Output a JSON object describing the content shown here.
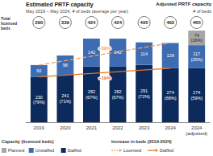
{
  "chart_data": {
    "type": "bar",
    "title": "Estimated PRTF capacity",
    "subtitle": "May 2019 – May 2024, # of beds (average per year)",
    "annotations": {
      "adjusted_title": "Adjusted PRTF capacity",
      "adjusted_subtitle": "# of beds",
      "total_label": "Total licensed beds",
      "capacity_legend": "Capacity (licensed beds)",
      "increase_legend": "Increase in beds (2019-2024)"
    },
    "categories": [
      "2019",
      "2020",
      "2021",
      "2022",
      "2023",
      "2024",
      "2024 (adjusted)"
    ],
    "totals": [
      290,
      339,
      424,
      424,
      405,
      402,
      465
    ],
    "series": [
      {
        "name": "Staffed",
        "type": "bar",
        "color": "#0d2a5c",
        "values": [
          230,
          241,
          282,
          282,
          291,
          274,
          274
        ],
        "value_labels": [
          "230 (79%)",
          "241 (71%)",
          "282 (67%)",
          "282 (67%)",
          "291 (72%)",
          "274 (68%)",
          "274 (59%)"
        ]
      },
      {
        "name": "Unstaffed",
        "type": "bar",
        "color": "#3d6cb3",
        "values": [
          60,
          98,
          142,
          142,
          114,
          128,
          117
        ],
        "value_labels": [
          "60",
          "98",
          "142",
          "142",
          "114",
          "128",
          "117 (25%)"
        ]
      },
      {
        "name": "Planned",
        "type": "bar",
        "color": "#a6a6a6",
        "values": [
          null,
          null,
          null,
          null,
          null,
          null,
          74
        ],
        "value_labels": [
          null,
          null,
          null,
          null,
          null,
          null,
          "74 (16%)"
        ]
      },
      {
        "name": "Licensed",
        "type": "line",
        "line_style": "dashed",
        "color": "#f4a460",
        "values": [
          290,
          null,
          null,
          null,
          null,
          402,
          null
        ],
        "annotation": "+39%"
      },
      {
        "name": "Staffed",
        "type": "line",
        "line_style": "solid",
        "color": "#e8731f",
        "values": [
          230,
          null,
          null,
          null,
          null,
          274,
          null
        ],
        "annotation": "+19%"
      }
    ],
    "ylim": [
      0,
      465
    ],
    "yticks": [
      0,
      465
    ],
    "stacked": true,
    "data_labels": true,
    "tick_labels": "x",
    "grid": false,
    "legend": "bottom"
  }
}
